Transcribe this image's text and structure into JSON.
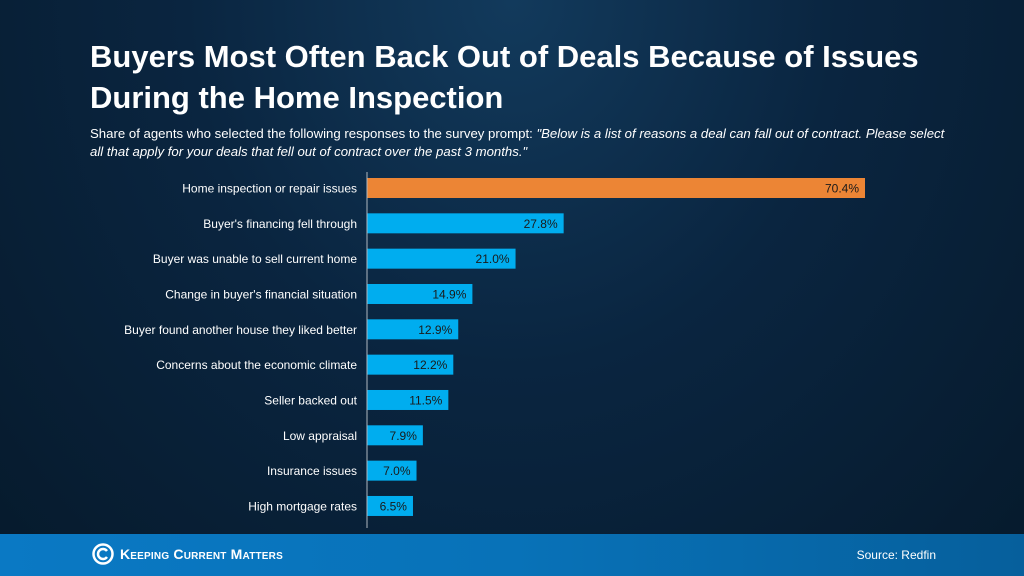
{
  "title": "Buyers Most Often Back Out of Deals Because of Issues During the Home Inspection",
  "subtitle_prefix": "Share of agents who selected the following responses to the survey prompt: ",
  "subtitle_quote": "\"Below is a list of reasons a deal can fall out of contract. Please select all that apply for your deals that fell out of contract over the past 3 months.\"",
  "chart_data": {
    "type": "bar",
    "orientation": "horizontal",
    "categories": [
      "Home inspection or repair issues",
      "Buyer's financing fell through",
      "Buyer was unable to sell current home",
      "Change in buyer's financial situation",
      "Buyer found another house they liked better",
      "Concerns about the economic climate",
      "Seller backed out",
      "Low appraisal",
      "Insurance issues",
      "High mortgage rates"
    ],
    "values": [
      70.4,
      27.8,
      21.0,
      14.9,
      12.9,
      12.2,
      11.5,
      7.9,
      7.0,
      6.5
    ],
    "labels": [
      "70.4%",
      "27.8%",
      "21.0%",
      "14.9%",
      "12.9%",
      "12.2%",
      "11.5%",
      "7.9%",
      "7.0%",
      "6.5%"
    ],
    "highlight_color": "#ec8535",
    "bar_color": "#00adef",
    "grid": false,
    "xlim": [
      0,
      70.4
    ]
  },
  "footer": {
    "brand": "Keeping Current Matters",
    "source": "Source: Redfin"
  }
}
